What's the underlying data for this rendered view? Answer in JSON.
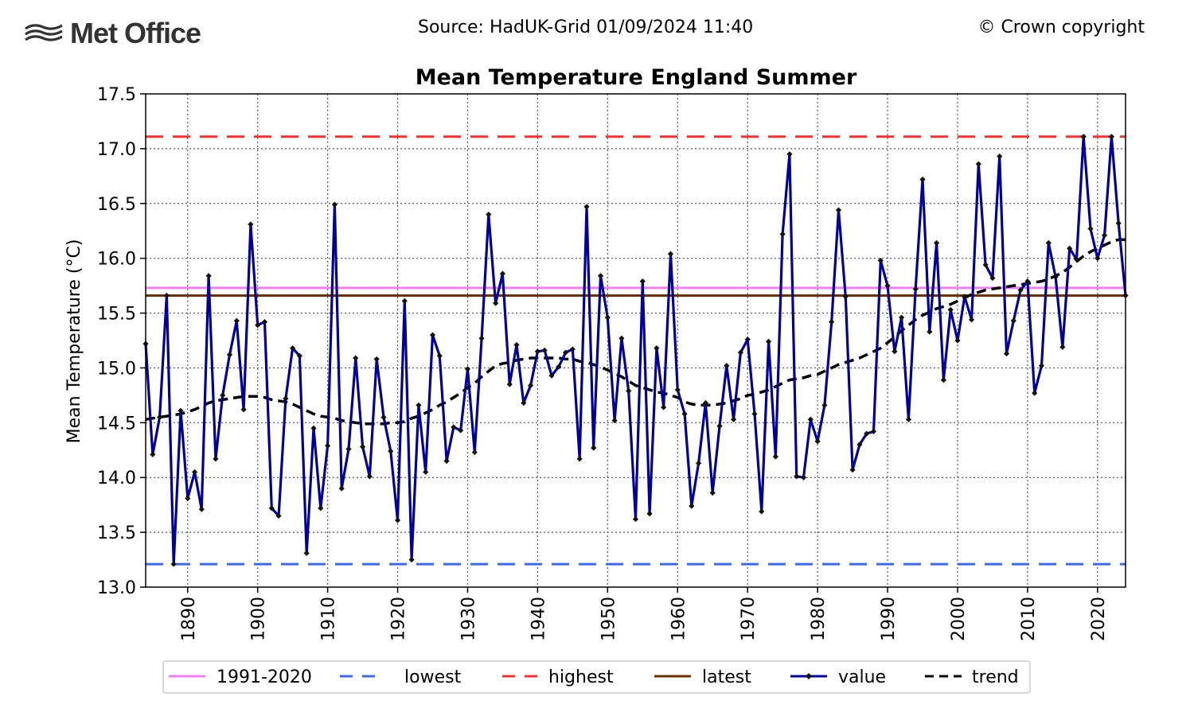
{
  "header": {
    "logo_text": "Met Office",
    "source": "Source: HadUK-Grid 01/09/2024 11:40",
    "copyright": "© Crown copyright"
  },
  "colors": {
    "baseline": "#ee82ee",
    "lowest": "#4169e1",
    "highest": "#ee3333",
    "latest": "#663300",
    "value": "#000099",
    "trend": "#000000"
  },
  "chart_data": {
    "type": "line",
    "title": "Mean Temperature England Summer",
    "xlabel": "",
    "ylabel": "Mean Temperature (°C)",
    "xlim": [
      1884,
      2024
    ],
    "ylim": [
      13.0,
      17.5
    ],
    "x_ticks": [
      1890,
      1900,
      1910,
      1920,
      1930,
      1940,
      1950,
      1960,
      1970,
      1980,
      1990,
      2000,
      2010,
      2020
    ],
    "y_ticks": [
      "13.0",
      "13.5",
      "14.0",
      "14.5",
      "15.0",
      "15.5",
      "16.0",
      "16.5",
      "17.0",
      "17.5"
    ],
    "grid": true,
    "legend_position": "bottom",
    "reference_lines": [
      {
        "name": "1991-2020",
        "value": 15.73,
        "style": "solid"
      },
      {
        "name": "lowest",
        "value": 13.21,
        "style": "dashed"
      },
      {
        "name": "highest",
        "value": 17.11,
        "style": "dashed"
      },
      {
        "name": "latest",
        "value": 15.66,
        "style": "solid"
      }
    ],
    "series": [
      {
        "name": "value",
        "x_start": 1884,
        "values": [
          15.22,
          14.21,
          14.55,
          15.66,
          13.21,
          14.61,
          13.81,
          14.05,
          13.71,
          15.84,
          14.17,
          14.75,
          15.12,
          15.43,
          14.62,
          16.31,
          15.39,
          15.42,
          13.72,
          13.65,
          14.72,
          15.18,
          15.11,
          13.31,
          14.45,
          13.72,
          14.29,
          16.49,
          13.9,
          14.26,
          15.09,
          14.28,
          14.01,
          15.08,
          14.55,
          14.24,
          13.61,
          15.61,
          13.25,
          14.66,
          14.05,
          15.3,
          15.11,
          14.15,
          14.46,
          14.43,
          14.99,
          14.23,
          15.27,
          16.4,
          15.59,
          15.86,
          14.85,
          15.21,
          14.68,
          14.84,
          15.15,
          15.16,
          14.93,
          15.01,
          15.14,
          15.17,
          14.17,
          16.47,
          14.27,
          15.84,
          15.46,
          14.52,
          15.27,
          14.79,
          13.62,
          15.79,
          13.67,
          15.18,
          14.64,
          16.04,
          14.8,
          14.58,
          13.74,
          14.13,
          14.68,
          13.86,
          14.47,
          15.02,
          14.53,
          15.14,
          15.26,
          14.58,
          13.69,
          15.24,
          14.19,
          16.22,
          16.95,
          14.01,
          14.0,
          14.53,
          14.33,
          14.66,
          15.42,
          16.44,
          15.65,
          14.07,
          14.3,
          14.4,
          14.42,
          15.98,
          15.75,
          15.15,
          15.46,
          14.53,
          15.72,
          16.72,
          15.33,
          16.14,
          14.89,
          15.53,
          15.25,
          15.65,
          15.44,
          16.86,
          15.94,
          15.82,
          16.93,
          15.13,
          15.43,
          15.71,
          15.79,
          14.77,
          15.02,
          16.14,
          15.83,
          15.19,
          16.09,
          15.99,
          17.11,
          16.27,
          16.0,
          16.21,
          17.11,
          16.32,
          15.66
        ]
      },
      {
        "name": "trend",
        "x_start": 1884,
        "values": [
          14.53,
          14.54,
          14.55,
          14.56,
          14.57,
          14.58,
          14.6,
          14.62,
          14.65,
          14.68,
          14.7,
          14.71,
          14.72,
          14.73,
          14.74,
          14.74,
          14.74,
          14.73,
          14.71,
          14.7,
          14.69,
          14.67,
          14.64,
          14.61,
          14.58,
          14.56,
          14.55,
          14.54,
          14.52,
          14.51,
          14.5,
          14.49,
          14.49,
          14.49,
          14.49,
          14.5,
          14.5,
          14.51,
          14.54,
          14.56,
          14.59,
          14.62,
          14.66,
          14.69,
          14.73,
          14.77,
          14.82,
          14.86,
          14.92,
          14.97,
          15.02,
          15.04,
          15.05,
          15.07,
          15.08,
          15.09,
          15.09,
          15.09,
          15.09,
          15.09,
          15.08,
          15.08,
          15.06,
          15.05,
          15.03,
          15.01,
          14.98,
          14.95,
          14.92,
          14.88,
          14.84,
          14.82,
          14.8,
          14.78,
          14.77,
          14.75,
          14.73,
          14.69,
          14.67,
          14.66,
          14.66,
          14.66,
          14.67,
          14.68,
          14.7,
          14.72,
          14.75,
          14.76,
          14.78,
          14.8,
          14.83,
          14.86,
          14.89,
          14.9,
          14.91,
          14.93,
          14.94,
          14.97,
          15.0,
          15.03,
          15.05,
          15.07,
          15.09,
          15.12,
          15.15,
          15.18,
          15.23,
          15.28,
          15.34,
          15.39,
          15.44,
          15.48,
          15.51,
          15.54,
          15.56,
          15.58,
          15.61,
          15.64,
          15.67,
          15.69,
          15.71,
          15.72,
          15.73,
          15.74,
          15.75,
          15.76,
          15.77,
          15.78,
          15.79,
          15.81,
          15.84,
          15.87,
          15.92,
          15.97,
          16.02,
          16.06,
          16.09,
          16.12,
          16.15,
          16.17,
          16.17
        ]
      }
    ]
  }
}
